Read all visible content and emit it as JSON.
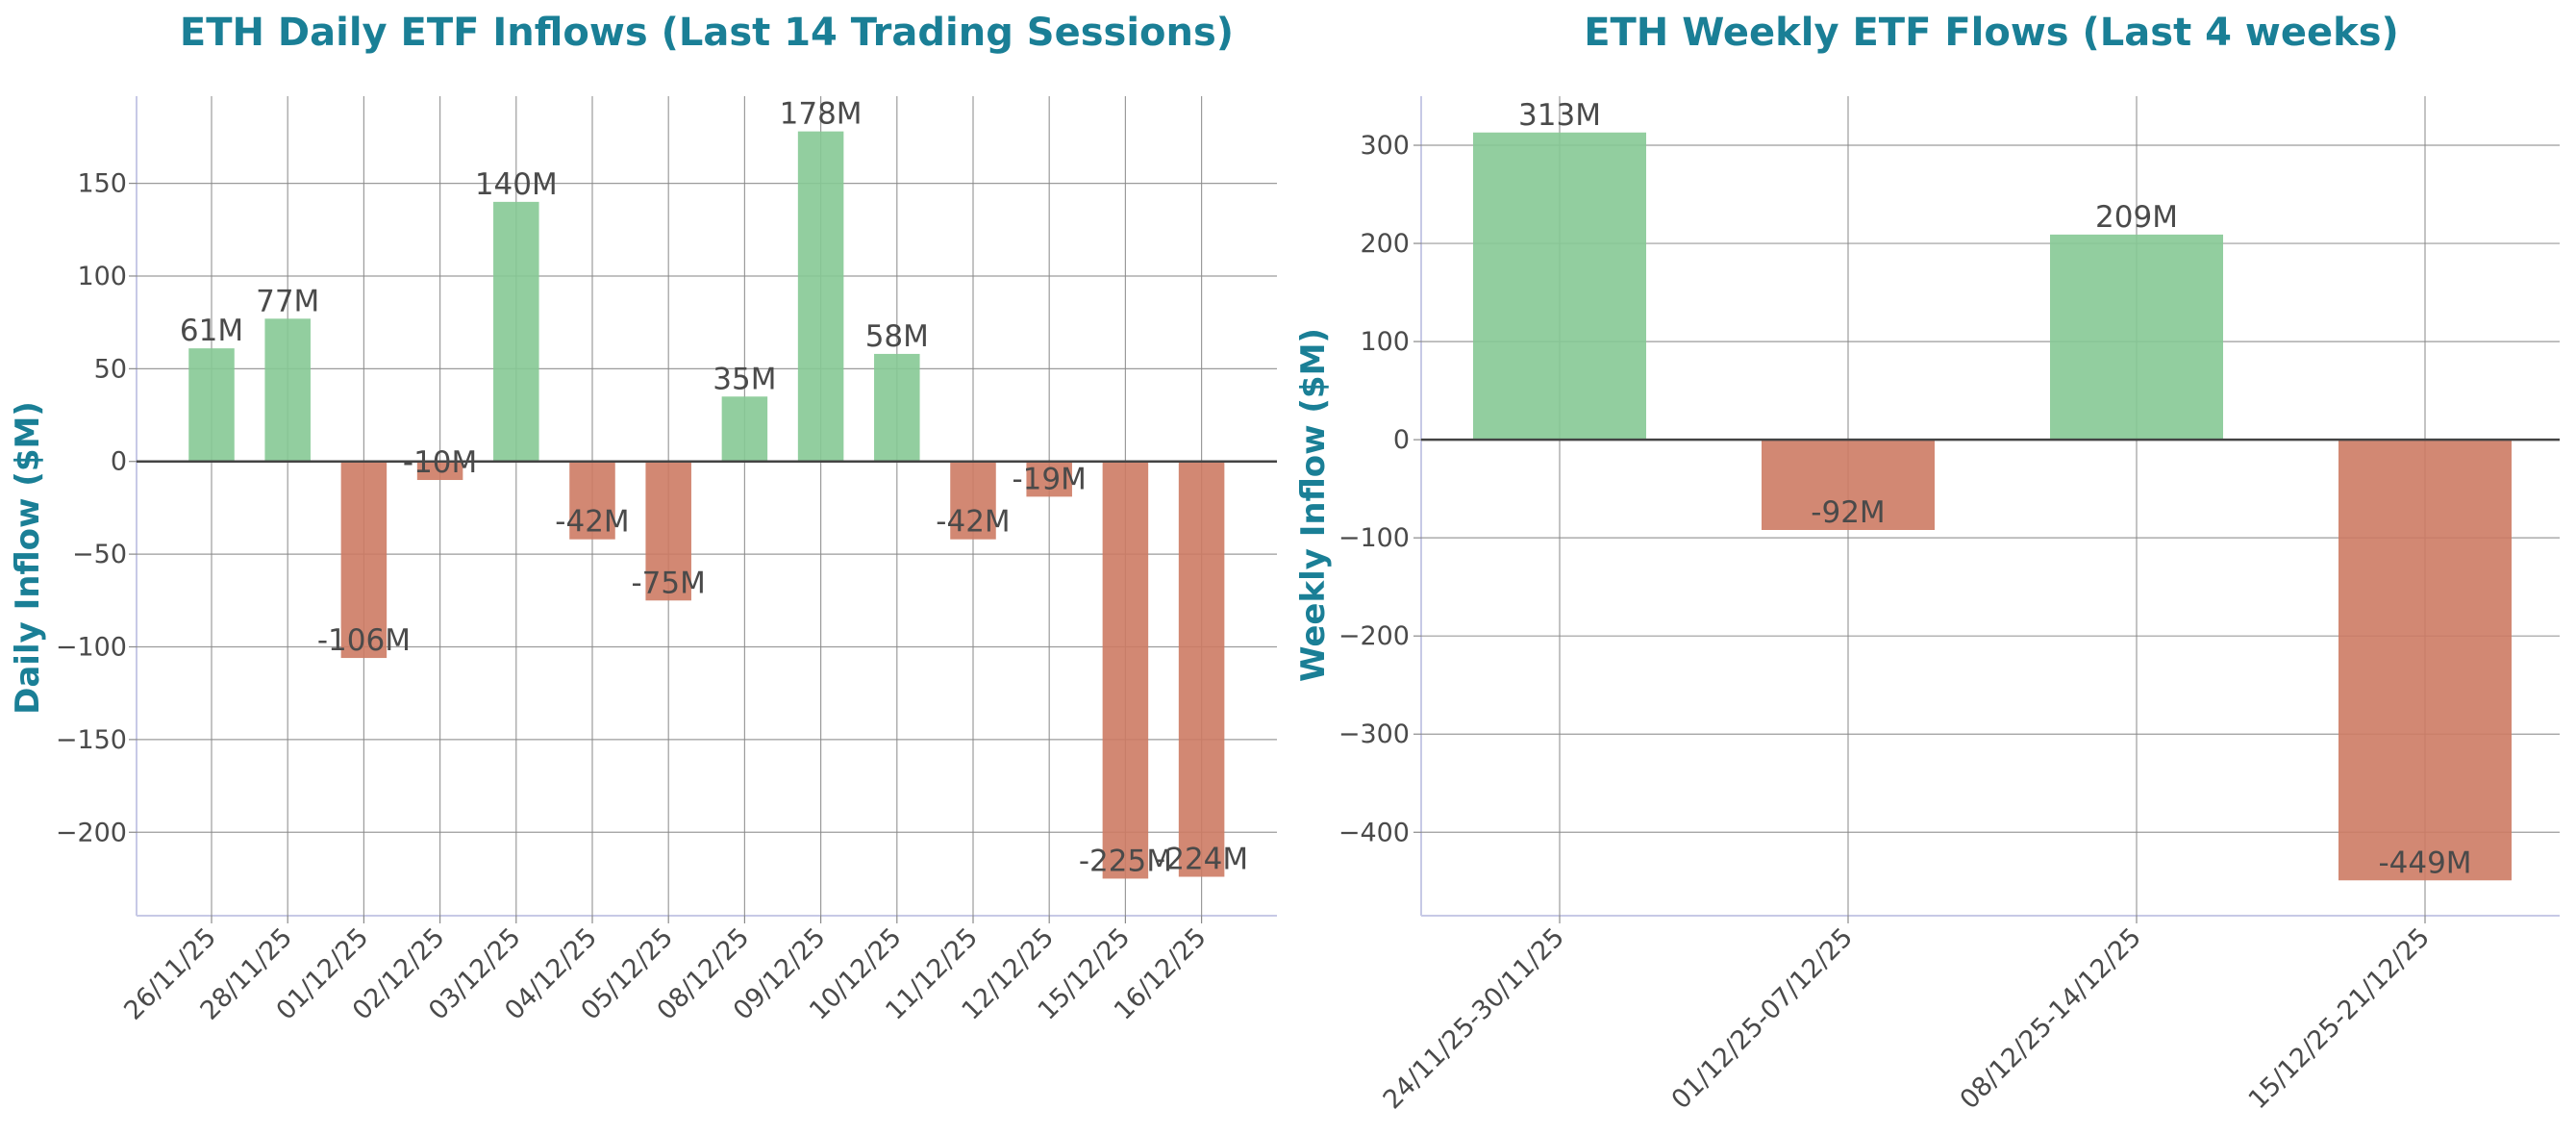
{
  "colors": {
    "title": "#1a7f96",
    "positive": "#86c995",
    "negative": "#cd7b64",
    "grid": "#8a8a8a",
    "zero_line": "#444444",
    "axis": "#c7c9e6",
    "text": "#4a4a4a"
  },
  "chart_data": [
    {
      "type": "bar",
      "title": "ETH Daily ETF Inflows (Last 14 Trading Sessions)",
      "xlabel": "",
      "ylabel": "Daily Inflow ($M)",
      "categories": [
        "26/11/25",
        "28/11/25",
        "01/12/25",
        "02/12/25",
        "03/12/25",
        "04/12/25",
        "05/12/25",
        "08/12/25",
        "09/12/25",
        "10/12/25",
        "11/12/25",
        "12/12/25",
        "15/12/25",
        "16/12/25"
      ],
      "values": [
        61,
        77,
        -106,
        -10,
        140,
        -42,
        -75,
        35,
        178,
        58,
        -42,
        -19,
        -225,
        -224
      ],
      "value_labels": [
        "61M",
        "77M",
        "-106M",
        "-10M",
        "140M",
        "-42M",
        "-75M",
        "35M",
        "178M",
        "58M",
        "-42M",
        "-19M",
        "-225M",
        "-224M"
      ],
      "yticks": [
        150,
        100,
        50,
        0,
        -50,
        -100,
        -150,
        -200
      ],
      "ytick_labels": [
        "150",
        "100",
        "50",
        "0",
        "−50",
        "−100",
        "−150",
        "−200"
      ],
      "ylim": [
        -245,
        197
      ],
      "grid": true
    },
    {
      "type": "bar",
      "title": "ETH Weekly ETF Flows (Last 4 weeks)",
      "xlabel": "",
      "ylabel": "Weekly Inflow ($M)",
      "categories": [
        "24/11/25-30/11/25",
        "01/12/25-07/12/25",
        "08/12/25-14/12/25",
        "15/12/25-21/12/25"
      ],
      "values": [
        313,
        -92,
        209,
        -449
      ],
      "value_labels": [
        "313M",
        "-92M",
        "209M",
        "-449M"
      ],
      "yticks": [
        300,
        200,
        100,
        0,
        -100,
        -200,
        -300,
        -400
      ],
      "ytick_labels": [
        "300",
        "200",
        "100",
        "0",
        "−100",
        "−200",
        "−300",
        "−400"
      ],
      "ylim": [
        -485,
        350
      ],
      "grid": true
    }
  ]
}
